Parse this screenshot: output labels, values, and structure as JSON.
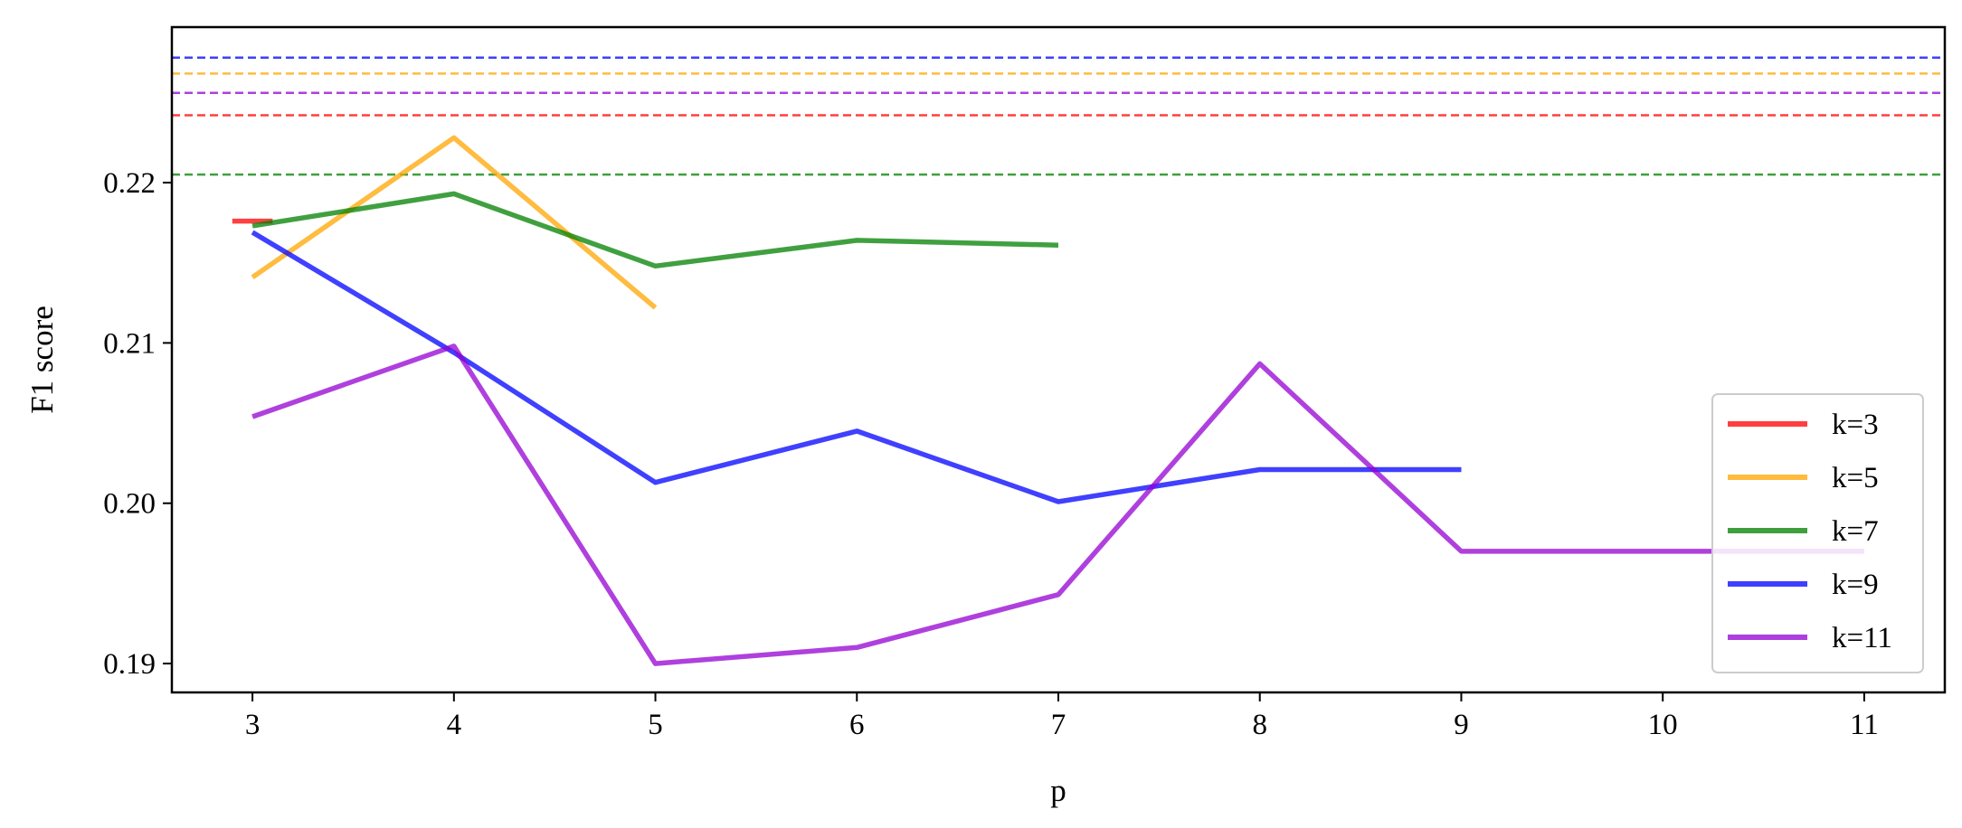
{
  "chart_data": {
    "type": "line",
    "title": "",
    "xlabel": "p",
    "ylabel": "F1 score",
    "xlim": [
      2.6,
      11.4
    ],
    "ylim": [
      0.1882,
      0.2297
    ],
    "x_ticks": [
      3,
      4,
      5,
      6,
      7,
      8,
      9,
      10,
      11
    ],
    "x_tick_labels": [
      "3",
      "4",
      "5",
      "6",
      "7",
      "8",
      "9",
      "10",
      "11"
    ],
    "y_ticks": [
      0.19,
      0.2,
      0.21,
      0.22
    ],
    "y_tick_labels": [
      "0.19",
      "0.20",
      "0.21",
      "0.22"
    ],
    "grid": false,
    "legend_position": "lower-right",
    "series": [
      {
        "name": "k=3",
        "color": "#ff0000",
        "x": [
          2.9,
          3.1
        ],
        "y": [
          0.2176,
          0.2176
        ],
        "baseline": 0.2242
      },
      {
        "name": "k=5",
        "color": "#ffa500",
        "x": [
          3,
          4,
          5
        ],
        "y": [
          0.2141,
          0.2228,
          0.2122
        ],
        "baseline": 0.2268
      },
      {
        "name": "k=7",
        "color": "#008000",
        "x": [
          3,
          4,
          5,
          6,
          7
        ],
        "y": [
          0.2173,
          0.2193,
          0.2148,
          0.2164,
          0.2161
        ],
        "baseline": 0.2205
      },
      {
        "name": "k=9",
        "color": "#0000ff",
        "x": [
          3,
          4,
          5,
          6,
          7,
          8,
          9
        ],
        "y": [
          0.2169,
          0.2094,
          0.2013,
          0.2045,
          0.2001,
          0.2021,
          0.2021
        ],
        "baseline": 0.2278
      },
      {
        "name": "k=11",
        "color": "#9400d3",
        "x": [
          3,
          4,
          5,
          6,
          7,
          8,
          9,
          10,
          11
        ],
        "y": [
          0.2054,
          0.2098,
          0.19,
          0.191,
          0.1943,
          0.2087,
          0.197,
          0.197,
          0.197
        ],
        "baseline": 0.2256
      }
    ]
  }
}
